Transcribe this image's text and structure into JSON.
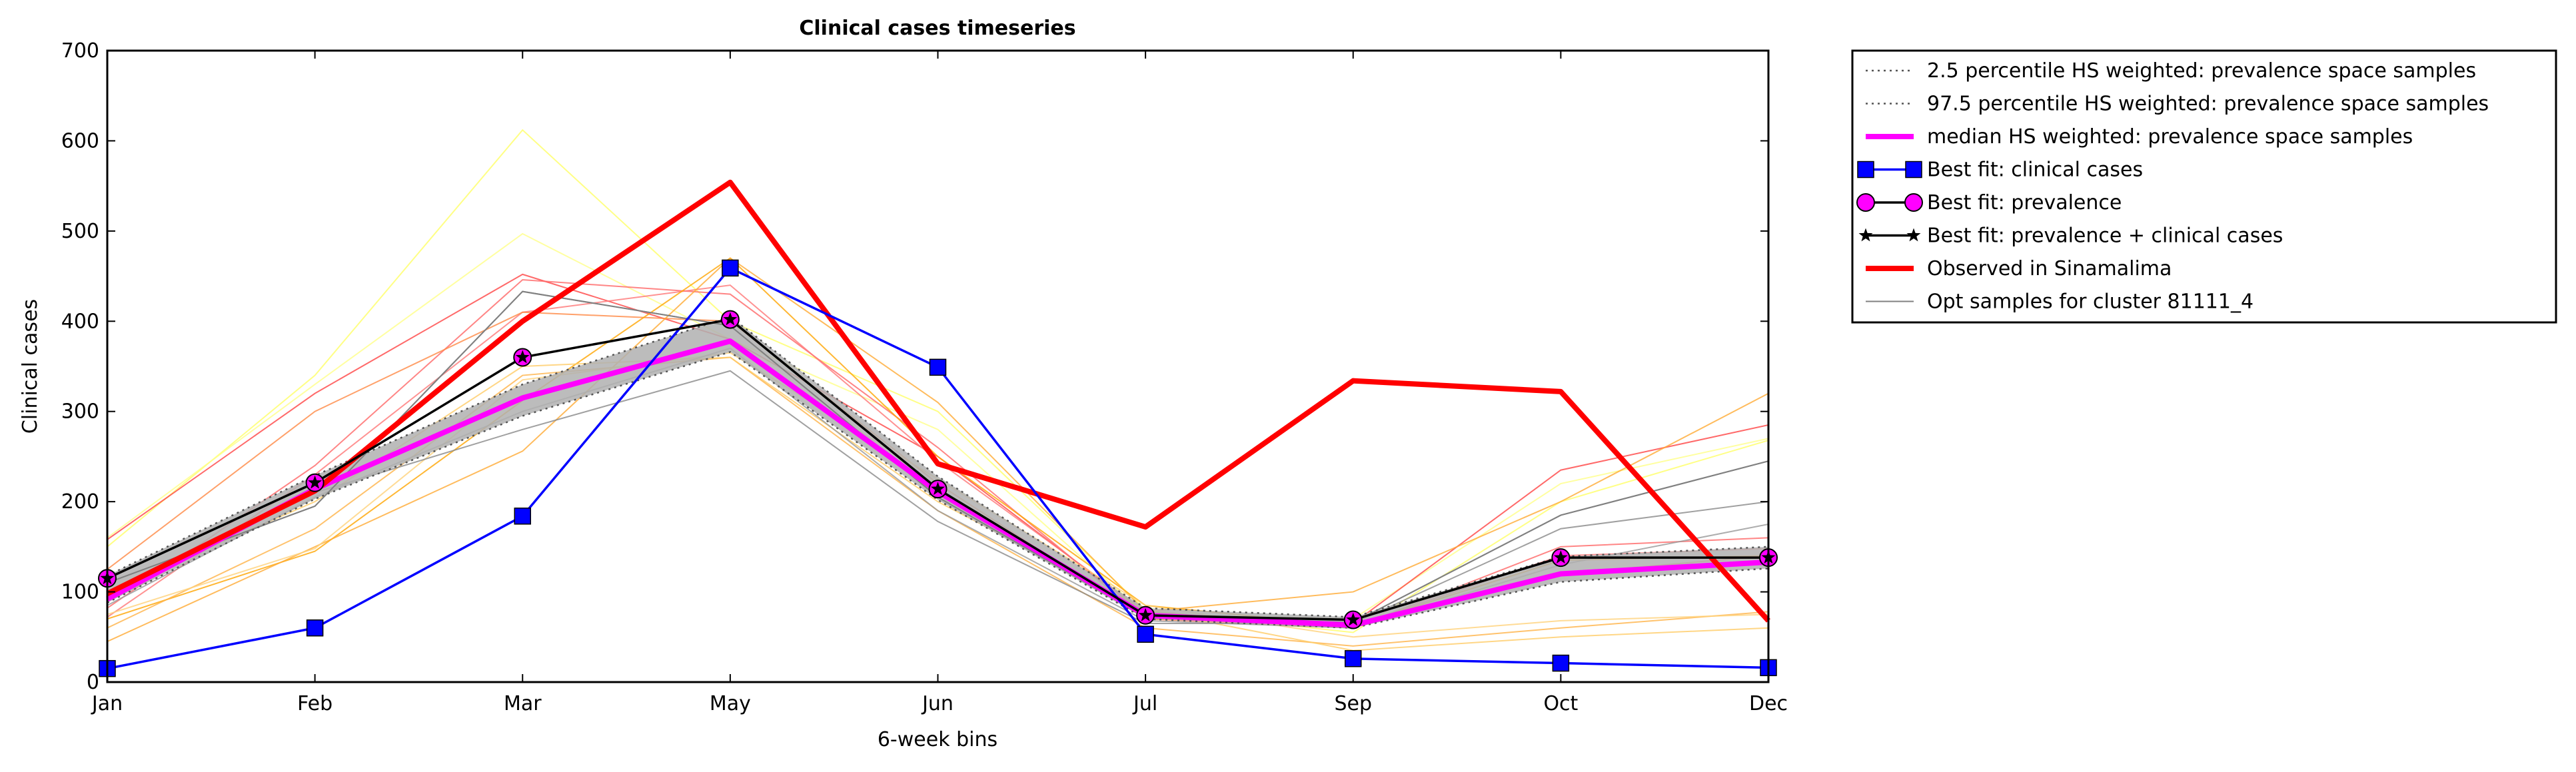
{
  "chart_data": {
    "type": "line",
    "title": "Clinical cases timeseries",
    "xlabel": "6-week bins",
    "ylabel": "Clinical cases",
    "categories": [
      "Jan",
      "Feb",
      "Mar",
      "May",
      "Jun",
      "Jul",
      "Sep",
      "Oct",
      "Dec"
    ],
    "yticks": [
      0,
      100,
      200,
      300,
      400,
      500,
      600,
      700
    ],
    "ylim": [
      0,
      700
    ],
    "grid": false,
    "legend_position": "outside-top-right",
    "band": {
      "lower": [
        88,
        203,
        295,
        366,
        202,
        70,
        60,
        111,
        126
      ],
      "upper": [
        118,
        229,
        330,
        405,
        228,
        82,
        72,
        139,
        150
      ],
      "color": "#b0b0b0"
    },
    "series": [
      {
        "name": "2.5 percentile HS weighted: prevalence space samples",
        "style": "dotted",
        "color": "#555555",
        "values": [
          88,
          203,
          295,
          366,
          202,
          70,
          60,
          111,
          126
        ]
      },
      {
        "name": "97.5 percentile HS weighted: prevalence space samples",
        "style": "dotted",
        "color": "#555555",
        "values": [
          118,
          229,
          330,
          405,
          228,
          82,
          72,
          139,
          150
        ]
      },
      {
        "name": "median HS weighted: prevalence space samples",
        "style": "solid",
        "color": "#ff00ff",
        "values": [
          92,
          214,
          315,
          378,
          211,
          74,
          63,
          120,
          133
        ]
      },
      {
        "name": "Best fit: clinical cases",
        "style": "line-square",
        "color": "#0000ff",
        "values": [
          15,
          60,
          184,
          459,
          349,
          53,
          26,
          21,
          16
        ]
      },
      {
        "name": "Best fit: prevalence",
        "style": "line-circle",
        "color": "#ff00ff",
        "values": [
          115,
          221,
          360,
          402,
          214,
          74,
          69,
          138,
          138
        ]
      },
      {
        "name": "Best fit: prevalence + clinical cases",
        "style": "line-star",
        "color": "#000000",
        "values": [
          115,
          221,
          360,
          402,
          214,
          74,
          69,
          138,
          138
        ]
      },
      {
        "name": "Observed in Sinamalima",
        "style": "thick",
        "color": "#ff0000",
        "values": [
          98,
          212,
          400,
          554,
          242,
          172,
          334,
          322,
          68
        ]
      },
      {
        "name": "Opt samples for cluster 81111_4",
        "style": "thin",
        "color": "#808080",
        "values": [
          110,
          195,
          433,
          395,
          205,
          72,
          66,
          185,
          245
        ]
      }
    ],
    "opt_samples": [
      {
        "color": "#ffff66",
        "values": [
          150,
          340,
          612,
          400,
          300,
          80,
          55,
          200,
          268
        ]
      },
      {
        "color": "#ffff88",
        "values": [
          160,
          330,
          497,
          380,
          280,
          75,
          70,
          220,
          270
        ]
      },
      {
        "color": "#ff4444",
        "values": [
          158,
          320,
          452,
          380,
          250,
          75,
          65,
          235,
          285
        ]
      },
      {
        "color": "#ff6666",
        "values": [
          82,
          240,
          446,
          430,
          260,
          70,
          60,
          150,
          160
        ]
      },
      {
        "color": "#ff7777",
        "values": [
          72,
          230,
          410,
          440,
          245,
          78,
          62,
          140,
          148
        ]
      },
      {
        "color": "#ff8844",
        "values": [
          125,
          300,
          410,
          400,
          220,
          70,
          62,
          120,
          140
        ]
      },
      {
        "color": "#ffa500",
        "values": [
          70,
          145,
          312,
          470,
          250,
          85,
          62,
          135,
          140
        ]
      },
      {
        "color": "#ffaa33",
        "values": [
          45,
          150,
          256,
          470,
          310,
          78,
          100,
          200,
          320
        ]
      },
      {
        "color": "#ffb347",
        "values": [
          60,
          170,
          340,
          360,
          190,
          60,
          40,
          60,
          78
        ]
      },
      {
        "color": "#ffcc66",
        "values": [
          100,
          200,
          350,
          360,
          200,
          80,
          35,
          50,
          60
        ]
      },
      {
        "color": "#ffd27a",
        "values": [
          75,
          148,
          335,
          365,
          225,
          85,
          50,
          68,
          75
        ]
      },
      {
        "color": "#777777",
        "values": [
          110,
          195,
          433,
          395,
          205,
          72,
          66,
          185,
          245
        ]
      },
      {
        "color": "#888888",
        "values": [
          100,
          210,
          280,
          345,
          178,
          65,
          65,
          170,
          200
        ]
      },
      {
        "color": "#999999",
        "values": [
          85,
          205,
          300,
          370,
          190,
          68,
          60,
          130,
          175
        ]
      }
    ]
  }
}
